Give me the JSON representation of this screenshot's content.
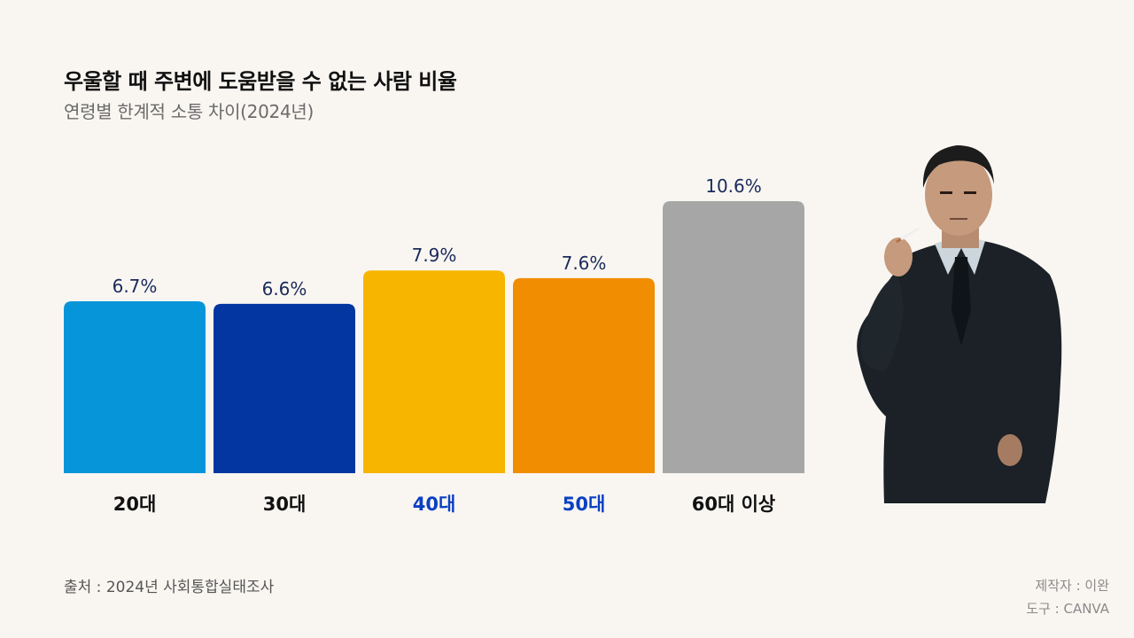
{
  "header": {
    "title": "우울할 때 주변에 도움받을 수 없는 사람 비율",
    "subtitle": "연령별 한계적 소통 차이(2024년)"
  },
  "footer": {
    "source": "출처 : 2024년 사회통합실태조사",
    "maker": "제작자 : 이완",
    "tool": "도구 : CANVA"
  },
  "illustration": {
    "icon": "man-in-suit-smoking-photo"
  },
  "chart_data": {
    "type": "bar",
    "title": "우울할 때 주변에 도움받을 수 없는 사람 비율",
    "subtitle": "연령별 한계적 소통 차이(2024년)",
    "categories": [
      "20대",
      "30대",
      "40대",
      "50대",
      "60대 이상"
    ],
    "values": [
      6.7,
      6.6,
      7.9,
      7.6,
      10.6
    ],
    "value_labels": [
      "6.7%",
      "6.6%",
      "7.9%",
      "7.6%",
      "10.6%"
    ],
    "unit": "%",
    "bar_colors": [
      "#0795d9",
      "#0336a0",
      "#f7b500",
      "#f08d00",
      "#a6a6a6"
    ],
    "category_label_colors": [
      "#111111",
      "#111111",
      "#0a40c2",
      "#0a40c2",
      "#111111"
    ],
    "value_label_color": "#1a2a5a",
    "ylim": [
      0,
      10.6
    ],
    "grid": false,
    "legend": "none",
    "xlabel": "",
    "ylabel": ""
  }
}
